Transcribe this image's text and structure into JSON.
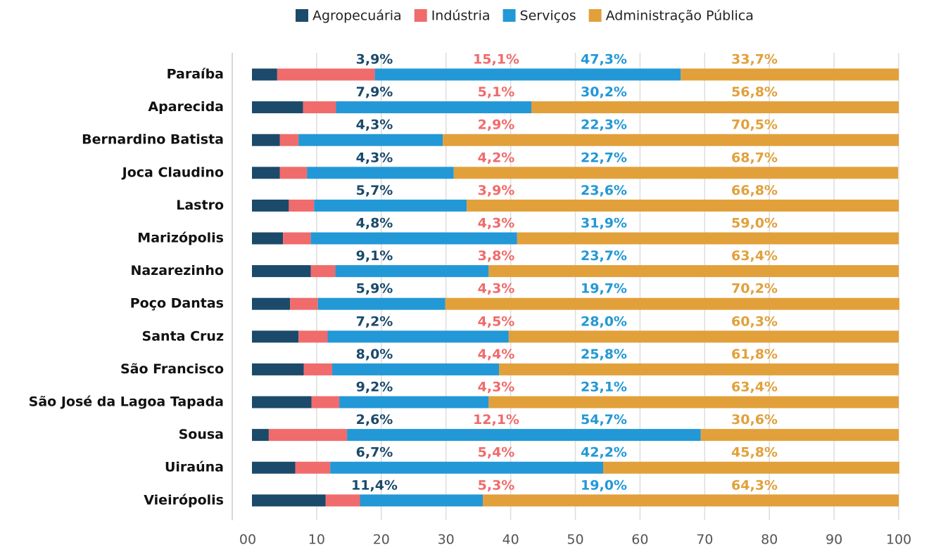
{
  "chart_data": {
    "type": "bar",
    "orientation": "horizontal",
    "stacked": true,
    "categories": [
      "Paraíba",
      "Aparecida",
      "Bernardino Batista",
      "Joca Claudino",
      "Lastro",
      "Marizópolis",
      "Nazarezinho",
      "Poço Dantas",
      "Santa Cruz",
      "São Francisco",
      "São José da Lagoa Tapada",
      "Sousa",
      "Uiraúna",
      "Vieirópolis"
    ],
    "series": [
      {
        "name": "Agropecuária",
        "color": "#1b4a6b",
        "values": [
          3.9,
          7.9,
          4.3,
          4.3,
          5.7,
          4.8,
          9.1,
          5.9,
          7.2,
          8.0,
          9.2,
          2.6,
          6.7,
          11.4
        ],
        "value_labels": [
          "3,9%",
          "7,9%",
          "4,3%",
          "4,3%",
          "5,7%",
          "4,8%",
          "9,1%",
          "5,9%",
          "7,2%",
          "8,0%",
          "9,2%",
          "2,6%",
          "6,7%",
          "11,4%"
        ]
      },
      {
        "name": "Indústria",
        "color": "#f06b6b",
        "values": [
          15.1,
          5.1,
          2.9,
          4.2,
          3.9,
          4.3,
          3.8,
          4.3,
          4.5,
          4.4,
          4.3,
          12.1,
          5.4,
          5.3
        ],
        "value_labels": [
          "15,1%",
          "5,1%",
          "2,9%",
          "4,2%",
          "3,9%",
          "4,3%",
          "3,8%",
          "4,3%",
          "4,5%",
          "4,4%",
          "4,3%",
          "12,1%",
          "5,4%",
          "5,3%"
        ]
      },
      {
        "name": "Serviços",
        "color": "#2398d6",
        "values": [
          47.3,
          30.2,
          22.3,
          22.7,
          23.6,
          31.9,
          23.7,
          19.7,
          28.0,
          25.8,
          23.1,
          54.7,
          42.2,
          19.0
        ],
        "value_labels": [
          "47,3%",
          "30,2%",
          "22,3%",
          "22,7%",
          "23,6%",
          "31,9%",
          "23,7%",
          "19,7%",
          "28,0%",
          "25,8%",
          "23,1%",
          "54,7%",
          "42,2%",
          "19,0%"
        ]
      },
      {
        "name": "Administração Pública",
        "color": "#e2a03b",
        "values": [
          33.7,
          56.8,
          70.5,
          68.7,
          66.8,
          59.0,
          63.4,
          70.2,
          60.3,
          61.8,
          63.4,
          30.6,
          45.8,
          64.3
        ],
        "value_labels": [
          "33,7%",
          "56,8%",
          "70,5%",
          "68,7%",
          "66,8%",
          "59,0%",
          "63,4%",
          "70,2%",
          "60,3%",
          "61,8%",
          "63,4%",
          "30,6%",
          "45,8%",
          "64,3%"
        ]
      }
    ],
    "xlim": [
      0,
      100
    ],
    "xticks": [
      {
        "value": 0,
        "label": "00"
      },
      10,
      20,
      30,
      40,
      50,
      60,
      70,
      80,
      90,
      100
    ],
    "grid": true,
    "legend": "top"
  }
}
